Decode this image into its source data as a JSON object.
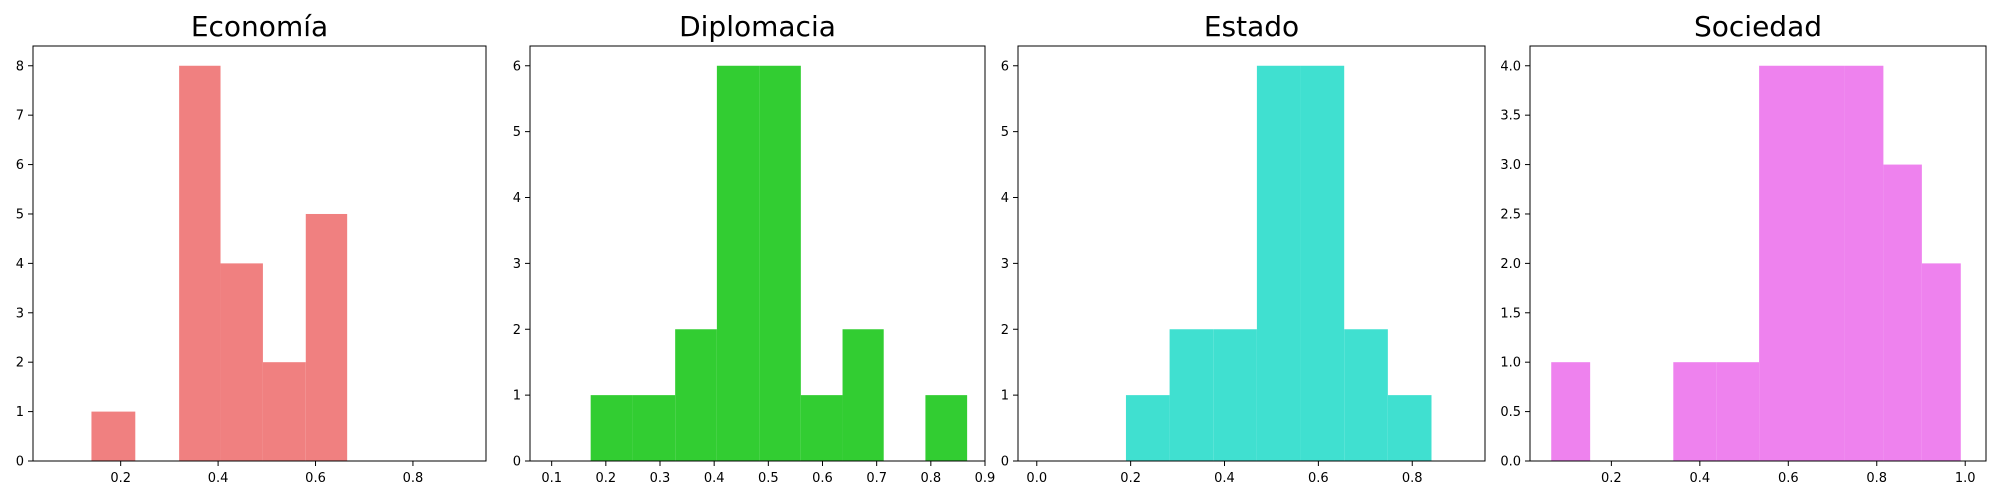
{
  "chart_data": [
    {
      "type": "bar",
      "title": "Economía",
      "color": "#F08080",
      "xlim": [
        0.02,
        0.95
      ],
      "ylim": [
        0,
        8.4
      ],
      "xticks": [
        "0.2",
        "0.4",
        "0.6",
        "0.8"
      ],
      "xtick_values": [
        0.2,
        0.4,
        0.6,
        0.8
      ],
      "yticks": [
        "0",
        "1",
        "2",
        "3",
        "4",
        "5",
        "6",
        "7",
        "8"
      ],
      "ytick_values": [
        0,
        1,
        2,
        3,
        4,
        5,
        6,
        7,
        8
      ],
      "bins": [
        {
          "x0": 0.14,
          "x1": 0.23,
          "count": 1
        },
        {
          "x0": 0.32,
          "x1": 0.405,
          "count": 8
        },
        {
          "x0": 0.405,
          "x1": 0.492,
          "count": 4
        },
        {
          "x0": 0.492,
          "x1": 0.58,
          "count": 2
        },
        {
          "x0": 0.58,
          "x1": 0.665,
          "count": 5
        }
      ]
    },
    {
      "type": "bar",
      "title": "Diplomacia",
      "color": "#32CD32",
      "xlim": [
        0.06,
        0.9
      ],
      "ylim": [
        0,
        6.3
      ],
      "xticks": [
        "0.1",
        "0.2",
        "0.3",
        "0.4",
        "0.5",
        "0.6",
        "0.7",
        "0.8",
        "0.9"
      ],
      "xtick_values": [
        0.1,
        0.2,
        0.3,
        0.4,
        0.5,
        0.6,
        0.7,
        0.8,
        0.9
      ],
      "yticks": [
        "0",
        "1",
        "2",
        "3",
        "4",
        "5",
        "6"
      ],
      "ytick_values": [
        0,
        1,
        2,
        3,
        4,
        5,
        6
      ],
      "bins": [
        {
          "x0": 0.172,
          "x1": 0.25,
          "count": 1
        },
        {
          "x0": 0.25,
          "x1": 0.328,
          "count": 1
        },
        {
          "x0": 0.328,
          "x1": 0.405,
          "count": 2
        },
        {
          "x0": 0.405,
          "x1": 0.483,
          "count": 6
        },
        {
          "x0": 0.483,
          "x1": 0.56,
          "count": 6
        },
        {
          "x0": 0.56,
          "x1": 0.637,
          "count": 1
        },
        {
          "x0": 0.637,
          "x1": 0.713,
          "count": 2
        },
        {
          "x0": 0.79,
          "x1": 0.867,
          "count": 1
        }
      ]
    },
    {
      "type": "bar",
      "title": "Estado",
      "color": "#40E0D0",
      "xlim": [
        -0.04,
        0.955
      ],
      "ylim": [
        0,
        6.3
      ],
      "xticks": [
        "0.0",
        "0.2",
        "0.4",
        "0.6",
        "0.8"
      ],
      "xtick_values": [
        0.0,
        0.2,
        0.4,
        0.6,
        0.8
      ],
      "yticks": [
        "0",
        "1",
        "2",
        "3",
        "4",
        "5",
        "6"
      ],
      "ytick_values": [
        0,
        1,
        2,
        3,
        4,
        5,
        6
      ],
      "bins": [
        {
          "x0": 0.0,
          "x1": 0.19,
          "count": 0
        },
        {
          "x0": 0.19,
          "x1": 0.283,
          "count": 1
        },
        {
          "x0": 0.283,
          "x1": 0.376,
          "count": 2
        },
        {
          "x0": 0.376,
          "x1": 0.469,
          "count": 2
        },
        {
          "x0": 0.469,
          "x1": 0.562,
          "count": 6
        },
        {
          "x0": 0.562,
          "x1": 0.655,
          "count": 6
        },
        {
          "x0": 0.655,
          "x1": 0.748,
          "count": 2
        },
        {
          "x0": 0.748,
          "x1": 0.841,
          "count": 1
        }
      ]
    },
    {
      "type": "bar",
      "title": "Sociedad",
      "color": "#EE82EE",
      "xlim": [
        0.016,
        1.047
      ],
      "ylim": [
        0,
        4.2
      ],
      "xticks": [
        "0.2",
        "0.4",
        "0.6",
        "0.8",
        "1.0"
      ],
      "xtick_values": [
        0.2,
        0.4,
        0.6,
        0.8,
        1.0
      ],
      "yticks": [
        "0.0",
        "0.5",
        "1.0",
        "1.5",
        "2.0",
        "2.5",
        "3.0",
        "3.5",
        "4.0"
      ],
      "ytick_values": [
        0.0,
        0.5,
        1.0,
        1.5,
        2.0,
        2.5,
        3.0,
        3.5,
        4.0
      ],
      "bins": [
        {
          "x0": 0.064,
          "x1": 0.152,
          "count": 1
        },
        {
          "x0": 0.34,
          "x1": 0.437,
          "count": 1
        },
        {
          "x0": 0.437,
          "x1": 0.534,
          "count": 1
        },
        {
          "x0": 0.534,
          "x1": 0.631,
          "count": 4
        },
        {
          "x0": 0.631,
          "x1": 0.728,
          "count": 4
        },
        {
          "x0": 0.728,
          "x1": 0.815,
          "count": 4
        },
        {
          "x0": 0.815,
          "x1": 0.902,
          "count": 3
        },
        {
          "x0": 0.902,
          "x1": 0.99,
          "count": 2
        }
      ]
    }
  ]
}
